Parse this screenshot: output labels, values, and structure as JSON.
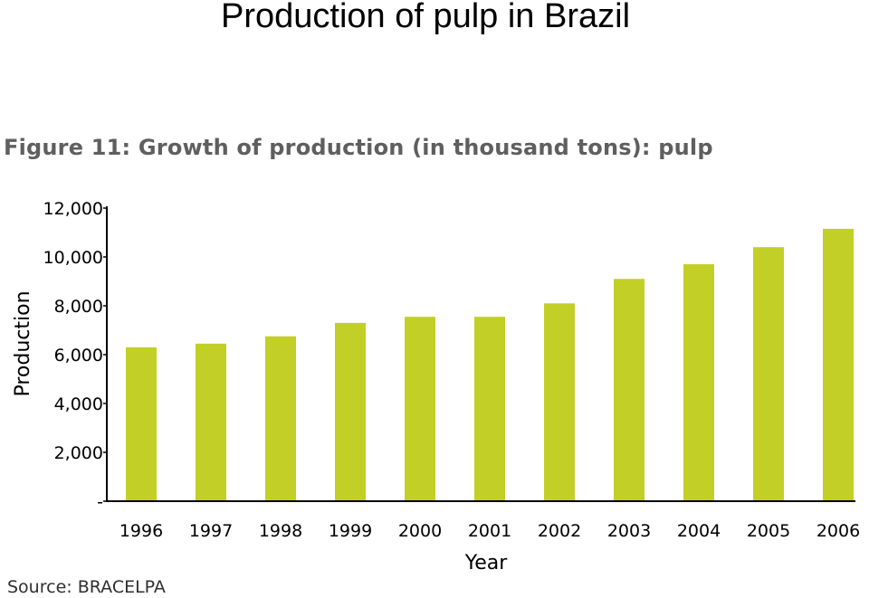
{
  "slide": {
    "title": "Production of pulp in Brazil"
  },
  "figure": {
    "heading": "Figure 11:  Growth of production (in thousand tons): pulp",
    "source": "Source: BRACELPA",
    "bar_color": "#c2cf26"
  },
  "chart_data": {
    "type": "bar",
    "title": "Figure 11:  Growth of production (in thousand tons): pulp",
    "xlabel": "Year",
    "ylabel": "Production",
    "categories": [
      "1996",
      "1997",
      "1998",
      "1999",
      "2000",
      "2001",
      "2002",
      "2003",
      "2004",
      "2005",
      "2006"
    ],
    "values": [
      6300,
      6450,
      6750,
      7300,
      7550,
      7550,
      8100,
      9100,
      9700,
      10400,
      11150
    ],
    "ylim": [
      0,
      12000
    ],
    "yticks": [
      0,
      2000,
      4000,
      6000,
      8000,
      10000,
      12000
    ],
    "ytick_labels": [
      "-",
      "2,000",
      "4,000",
      "6,000",
      "8,000",
      "10,000",
      "12,000"
    ],
    "grid": false,
    "legend": "none"
  }
}
